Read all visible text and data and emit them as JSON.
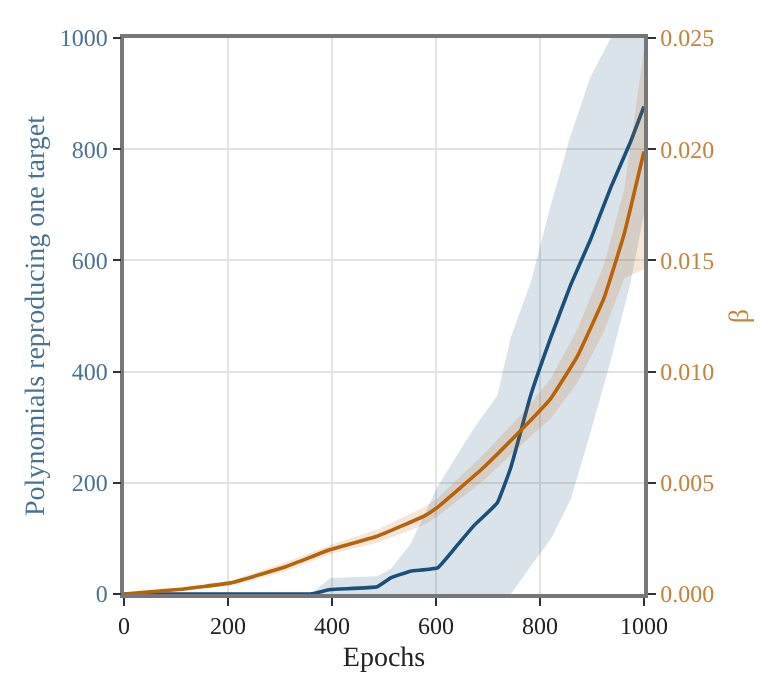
{
  "chart_data": {
    "type": "line",
    "xlabel": "Epochs",
    "ylabel": "Polynomials reproducing one target",
    "y2label": "β",
    "xlim": [
      0,
      1000
    ],
    "xticks": [
      0,
      200,
      400,
      600,
      800,
      1000
    ],
    "ylim": [
      0,
      1000
    ],
    "yticks": [
      0,
      200,
      400,
      600,
      800,
      1000
    ],
    "y2lim": [
      0,
      0.025
    ],
    "y2ticks": [
      {
        "value": 0,
        "label": "0.000"
      },
      {
        "value": 0.005,
        "label": "0.005"
      },
      {
        "value": 0.01,
        "label": "0.010"
      },
      {
        "value": 0.015,
        "label": "0.015"
      },
      {
        "value": 0.02,
        "label": "0.020"
      },
      {
        "value": 0.025,
        "label": "0.025"
      }
    ],
    "grid": true,
    "series": [
      {
        "color": "#1b4f7a",
        "x": [
          0,
          300,
          359,
          397,
          487,
          513,
          551,
          603,
          641,
          673,
          718,
          744,
          782,
          821,
          859,
          897,
          936,
          974,
          1000
        ],
        "values": [
          0,
          0,
          0,
          8,
          13,
          29,
          41,
          47,
          88,
          123,
          164,
          228,
          357,
          462,
          556,
          637,
          731,
          813,
          877
        ],
        "lower": [
          0,
          0,
          0,
          0,
          0,
          0,
          0,
          0,
          0,
          0,
          0,
          0,
          50,
          99,
          170,
          290,
          420,
          560,
          684
        ],
        "upper": [
          0,
          0,
          0,
          29,
          32,
          45,
          90,
          193,
          251,
          298,
          357,
          462,
          560,
          700,
          825,
          930,
          1000,
          1000,
          1000
        ]
      },
      {
        "color": "#b8620a",
        "axis": "y2",
        "x": [
          0,
          103,
          205,
          308,
          397,
          487,
          577,
          603,
          692,
          769,
          821,
          872,
          923,
          962,
          1000
        ],
        "values": [
          0,
          0.0002,
          0.0005,
          0.0012,
          0.002,
          0.0026,
          0.0035,
          0.0039,
          0.0057,
          0.0075,
          0.0088,
          0.0107,
          0.0133,
          0.0162,
          0.0199
        ],
        "lower": [
          0,
          0.0001,
          0.0004,
          0.001,
          0.0018,
          0.0023,
          0.0031,
          0.0035,
          0.0051,
          0.0068,
          0.0079,
          0.0095,
          0.0118,
          0.0142,
          0.0146
        ],
        "upper": [
          0,
          0.0002,
          0.0006,
          0.0014,
          0.0022,
          0.0029,
          0.0039,
          0.0043,
          0.0063,
          0.0082,
          0.0097,
          0.0119,
          0.0148,
          0.0182,
          0.0245
        ]
      }
    ]
  }
}
